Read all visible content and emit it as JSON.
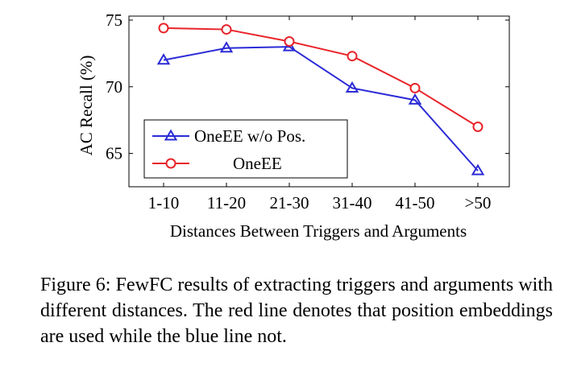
{
  "chart_data": {
    "type": "line",
    "categories": [
      "1-10",
      "11-20",
      "21-30",
      "31-40",
      "41-50",
      ">50"
    ],
    "series": [
      {
        "name": "OneEE w/o Pos.",
        "values": [
          72.0,
          72.9,
          73.0,
          69.9,
          69.0,
          63.7
        ],
        "color": "#2b2bd6",
        "marker": "triangle"
      },
      {
        "name": "OneEE",
        "values": [
          74.4,
          74.3,
          73.4,
          72.3,
          69.9,
          67.0
        ],
        "color": "#e8242a",
        "marker": "circle"
      }
    ],
    "title": "",
    "xlabel": "Distances Between Triggers and Arguments",
    "ylabel": "AC Recall (%)",
    "ylim": [
      62.5,
      75.3
    ],
    "yticks": [
      65,
      70,
      75
    ],
    "grid": false,
    "legend_position": "lower-left"
  },
  "caption": "Figure 6: FewFC results of extracting triggers and arguments with different distances. The red line denotes that position embeddings are used while the blue line not."
}
